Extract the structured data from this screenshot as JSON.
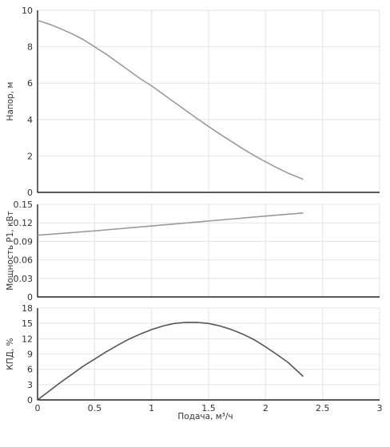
{
  "chart_data": [
    {
      "type": "line",
      "id": "head",
      "ylabel": "Напор, м",
      "ylim": [
        0,
        10
      ],
      "yticks": [
        0,
        2,
        4,
        6,
        8,
        10
      ],
      "ytick_labels": [
        "0",
        "2",
        "4",
        "6",
        "8",
        "10"
      ],
      "xlim": [
        0,
        3
      ],
      "xticks": [
        0,
        0.5,
        1,
        1.5,
        2,
        2.5,
        3
      ],
      "grid": true,
      "series": [
        {
          "color": "#999999",
          "x": [
            0,
            0.1,
            0.2,
            0.3,
            0.4,
            0.5,
            0.6,
            0.7,
            0.8,
            0.9,
            1.0,
            1.1,
            1.2,
            1.3,
            1.4,
            1.5,
            1.6,
            1.7,
            1.8,
            1.9,
            2.0,
            2.1,
            2.2,
            2.33
          ],
          "y": [
            9.45,
            9.25,
            9.0,
            8.72,
            8.4,
            8.0,
            7.6,
            7.15,
            6.7,
            6.25,
            5.85,
            5.4,
            4.95,
            4.5,
            4.05,
            3.62,
            3.2,
            2.8,
            2.4,
            2.02,
            1.68,
            1.35,
            1.05,
            0.72
          ]
        }
      ]
    },
    {
      "type": "line",
      "id": "power",
      "ylabel": "Мощность P1, кВт",
      "ylim": [
        0,
        0.15
      ],
      "yticks": [
        0,
        0.03,
        0.06,
        0.09,
        0.12,
        0.15
      ],
      "ytick_labels": [
        "0",
        "0.03",
        "0.06",
        "0.09",
        "0.12",
        "0.15"
      ],
      "xlim": [
        0,
        3
      ],
      "xticks": [
        0,
        0.5,
        1,
        1.5,
        2,
        2.5,
        3
      ],
      "grid": true,
      "series": [
        {
          "color": "#999999",
          "x": [
            0,
            0.5,
            1.0,
            1.5,
            2.0,
            2.33
          ],
          "y": [
            0.1,
            0.107,
            0.115,
            0.123,
            0.131,
            0.136
          ]
        }
      ]
    },
    {
      "type": "line",
      "id": "efficiency",
      "ylabel": "КПД, %",
      "xlabel": "Подача, м³/ч",
      "ylim": [
        0,
        18
      ],
      "yticks": [
        0,
        3,
        6,
        9,
        12,
        15,
        18
      ],
      "ytick_labels": [
        "0",
        "3",
        "6",
        "9",
        "12",
        "15",
        "18"
      ],
      "xlim": [
        0,
        3
      ],
      "xticks": [
        0,
        0.5,
        1,
        1.5,
        2,
        2.5,
        3
      ],
      "xtick_labels": [
        "0",
        "0.5",
        "1",
        "1.5",
        "2",
        "2.5",
        "3"
      ],
      "grid": true,
      "series": [
        {
          "color": "#555555",
          "x": [
            0,
            0.1,
            0.2,
            0.3,
            0.4,
            0.5,
            0.6,
            0.7,
            0.8,
            0.9,
            1.0,
            1.1,
            1.2,
            1.3,
            1.4,
            1.5,
            1.6,
            1.7,
            1.8,
            1.9,
            2.0,
            2.1,
            2.2,
            2.33
          ],
          "y": [
            0,
            1.7,
            3.4,
            5.0,
            6.6,
            8.0,
            9.4,
            10.7,
            11.9,
            12.9,
            13.8,
            14.5,
            15.0,
            15.2,
            15.2,
            15.0,
            14.5,
            13.8,
            12.9,
            11.8,
            10.4,
            8.9,
            7.3,
            4.6
          ]
        }
      ]
    }
  ]
}
